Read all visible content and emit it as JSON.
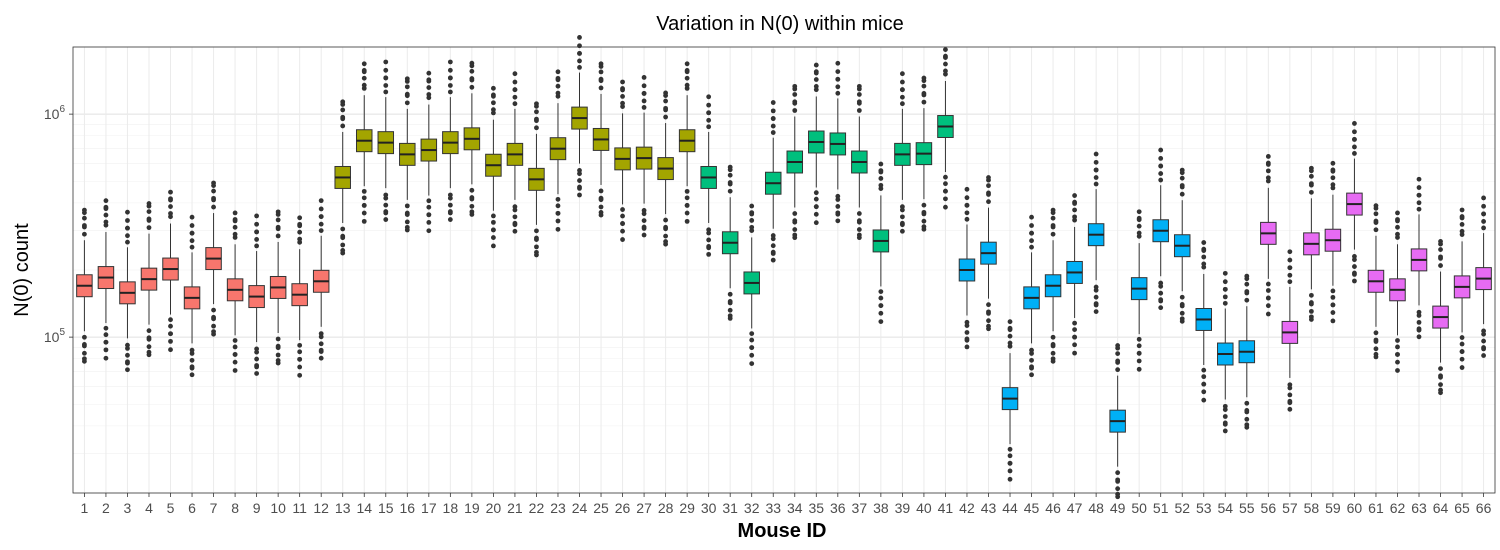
{
  "chart_data": {
    "type": "box",
    "title": "Variation in  N(0)  within mice",
    "xlabel": "Mouse ID",
    "ylabel": "N(0) count",
    "y_scale": "log10",
    "ylim": [
      20000,
      2000000
    ],
    "y_ticks": [
      {
        "value": 100000,
        "base": "10",
        "exp": "5"
      },
      {
        "value": 1000000,
        "base": "10",
        "exp": "6"
      }
    ],
    "grid": true,
    "legend": "none",
    "categories": [
      "1",
      "2",
      "3",
      "4",
      "5",
      "6",
      "7",
      "8",
      "9",
      "10",
      "11",
      "12",
      "13",
      "14",
      "15",
      "16",
      "17",
      "18",
      "19",
      "20",
      "21",
      "22",
      "23",
      "24",
      "25",
      "26",
      "27",
      "28",
      "29",
      "30",
      "31",
      "32",
      "33",
      "34",
      "35",
      "36",
      "37",
      "38",
      "39",
      "40",
      "41",
      "42",
      "43",
      "44",
      "45",
      "46",
      "47",
      "48",
      "49",
      "50",
      "51",
      "52",
      "53",
      "54",
      "55",
      "56",
      "57",
      "58",
      "59",
      "60",
      "61",
      "62",
      "63",
      "64",
      "65",
      "66"
    ],
    "group_colors": [
      "#F8766D",
      "#A3A500",
      "#00BF7D",
      "#00B0F6",
      "#E76BF3"
    ],
    "groups": [
      0,
      0,
      0,
      0,
      0,
      0,
      0,
      0,
      0,
      0,
      0,
      0,
      1,
      1,
      1,
      1,
      1,
      1,
      1,
      1,
      1,
      1,
      1,
      1,
      1,
      1,
      1,
      1,
      1,
      2,
      2,
      2,
      2,
      2,
      2,
      2,
      2,
      2,
      2,
      2,
      2,
      3,
      3,
      3,
      3,
      3,
      3,
      3,
      3,
      3,
      3,
      3,
      3,
      3,
      3,
      4,
      4,
      4,
      4,
      4,
      4,
      4,
      4,
      4,
      4,
      4
    ],
    "medians": [
      170000,
      185000,
      158000,
      182000,
      202000,
      150000,
      225000,
      163000,
      152000,
      167000,
      155000,
      178000,
      520000,
      760000,
      745000,
      660000,
      690000,
      745000,
      775000,
      590000,
      660000,
      510000,
      700000,
      960000,
      770000,
      630000,
      635000,
      570000,
      760000,
      520000,
      265000,
      175000,
      490000,
      610000,
      750000,
      735000,
      610000,
      270000,
      660000,
      665000,
      880000,
      200000,
      238000,
      53000,
      150000,
      170000,
      195000,
      288000,
      42000,
      165000,
      300000,
      257000,
      120000,
      84000,
      86000,
      292000,
      105000,
      262000,
      272000,
      395000,
      178000,
      163000,
      222000,
      123000,
      168000,
      183000
    ],
    "iqr_half_factor": 1.12,
    "whisker_factor": 1.6,
    "outlier_factor": 2.3
  }
}
